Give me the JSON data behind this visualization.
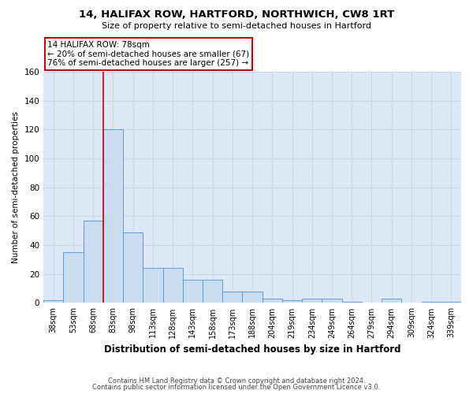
{
  "title": "14, HALIFAX ROW, HARTFORD, NORTHWICH, CW8 1RT",
  "subtitle": "Size of property relative to semi-detached houses in Hartford",
  "xlabel": "Distribution of semi-detached houses by size in Hartford",
  "ylabel": "Number of semi-detached properties",
  "footer1": "Contains HM Land Registry data © Crown copyright and database right 2024.",
  "footer2": "Contains public sector information licensed under the Open Government Licence v3.0.",
  "categories": [
    "38sqm",
    "53sqm",
    "68sqm",
    "83sqm",
    "98sqm",
    "113sqm",
    "128sqm",
    "143sqm",
    "158sqm",
    "173sqm",
    "188sqm",
    "204sqm",
    "219sqm",
    "234sqm",
    "249sqm",
    "264sqm",
    "279sqm",
    "294sqm",
    "309sqm",
    "324sqm",
    "339sqm"
  ],
  "values": [
    2,
    35,
    57,
    120,
    49,
    24,
    24,
    16,
    16,
    8,
    8,
    3,
    2,
    3,
    3,
    1,
    0,
    3,
    0,
    1,
    1
  ],
  "bar_color": "#c9dcf0",
  "bar_edge_color": "#5b9bd5",
  "red_line_x": 2.5,
  "annotation_line1": "14 HALIFAX ROW: 78sqm",
  "annotation_line2": "← 20% of semi-detached houses are smaller (67)",
  "annotation_line3": "76% of semi-detached houses are larger (257) →",
  "annotation_box_color": "white",
  "annotation_border_color": "#cc0000",
  "red_line_color": "#cc0000",
  "ylim": [
    0,
    160
  ],
  "yticks": [
    0,
    20,
    40,
    60,
    80,
    100,
    120,
    140,
    160
  ],
  "grid_color": "#c8d4e8",
  "bg_color": "#dce8f8",
  "title_fontsize": 9.5,
  "subtitle_fontsize": 8,
  "ylabel_fontsize": 7.5,
  "xlabel_fontsize": 8.5,
  "tick_fontsize": 7,
  "ytick_fontsize": 7.5,
  "footer_fontsize": 6
}
